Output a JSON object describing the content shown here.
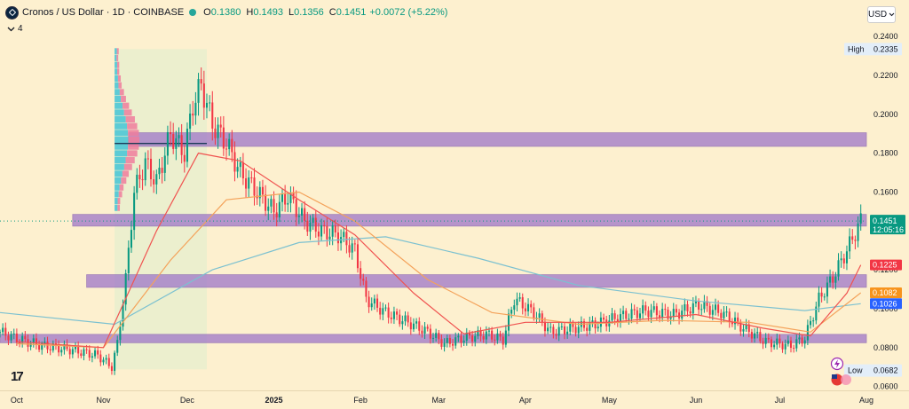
{
  "header": {
    "title": "Cronos / US Dollar · 1D · COINBASE",
    "open_label": "O",
    "open": "0.1380",
    "high_label": "H",
    "high": "0.1493",
    "low_label": "L",
    "low": "0.1356",
    "close_label": "C",
    "close": "0.1451",
    "change": "+0.0072 (+5.22%)",
    "indicator_count": "4",
    "currency": "USD"
  },
  "badges": {
    "high_label": "High",
    "high_value": "0.2335",
    "low_label": "Low",
    "low_value": "0.0682",
    "last_price": "0.1451",
    "countdown": "12:05:16",
    "ma_red": "0.1225",
    "ma_orange": "0.1082",
    "ma_blue": "0.1026"
  },
  "colors": {
    "background": "#fdf0cf",
    "up": "#089981",
    "down": "#f23645",
    "zone": "#9b72c9",
    "ma_red": "#f05350",
    "ma_orange": "#f4a25a",
    "ma_blue": "#7cc1d0",
    "volume_profile_up": "#44c4d6",
    "volume_profile_down": "#f07c9c"
  },
  "icons": [
    "coin-logo-icon",
    "chevron-down-icon",
    "lightning-icon",
    "us-flag-icon",
    "tradingview-logo-icon"
  ],
  "chart_data": {
    "type": "candlestick",
    "symbol": "CRO/USD",
    "interval": "1D",
    "exchange": "COINBASE",
    "y_axis": {
      "ticks": [
        "0.0600",
        "0.0800",
        "0.1000",
        "0.1200",
        "0.1400",
        "0.1600",
        "0.1800",
        "0.2000",
        "0.2200",
        "0.2400"
      ],
      "range": [
        0.058,
        0.246
      ]
    },
    "x_axis": {
      "labels": [
        "Oct",
        "Nov",
        "Dec",
        "2025",
        "Feb",
        "Mar",
        "Apr",
        "May",
        "Jun",
        "Jul",
        "Aug"
      ],
      "start": "2024-09-25",
      "end": "2025-08-01"
    },
    "zones": [
      {
        "bottom": 0.1835,
        "top": 0.1905,
        "from": "2024-11-10",
        "to": "2025-08-01"
      },
      {
        "bottom": 0.1425,
        "top": 0.1485,
        "from": "2024-10-21",
        "to": "2025-08-01"
      },
      {
        "bottom": 0.111,
        "top": 0.1175,
        "from": "2024-10-26",
        "to": "2025-08-01"
      },
      {
        "bottom": 0.0825,
        "top": 0.0868,
        "from": "2024-09-25",
        "to": "2025-08-01"
      }
    ],
    "profile_box": {
      "from": "2024-11-05",
      "to": "2024-12-08",
      "bottom": 0.0688,
      "top": 0.2335
    },
    "poc_price": 0.185,
    "price_path": [
      [
        "2024-09-25",
        0.088
      ],
      [
        "2024-10-01",
        0.0845
      ],
      [
        "2024-10-10",
        0.081
      ],
      [
        "2024-10-20",
        0.079
      ],
      [
        "2024-10-30",
        0.076
      ],
      [
        "2024-11-04",
        0.07
      ],
      [
        "2024-11-06",
        0.082
      ],
      [
        "2024-11-09",
        0.115
      ],
      [
        "2024-11-12",
        0.16
      ],
      [
        "2024-11-16",
        0.175
      ],
      [
        "2024-11-20",
        0.165
      ],
      [
        "2024-11-25",
        0.19
      ],
      [
        "2024-11-30",
        0.18
      ],
      [
        "2024-12-03",
        0.205
      ],
      [
        "2024-12-06",
        0.215
      ],
      [
        "2024-12-10",
        0.195
      ],
      [
        "2024-12-15",
        0.185
      ],
      [
        "2024-12-20",
        0.17
      ],
      [
        "2024-12-26",
        0.16
      ],
      [
        "2025-01-01",
        0.15
      ],
      [
        "2025-01-06",
        0.158
      ],
      [
        "2025-01-12",
        0.145
      ],
      [
        "2025-01-18",
        0.14
      ],
      [
        "2025-01-24",
        0.138
      ],
      [
        "2025-01-30",
        0.13
      ],
      [
        "2025-02-03",
        0.105
      ],
      [
        "2025-02-10",
        0.098
      ],
      [
        "2025-02-18",
        0.093
      ],
      [
        "2025-02-25",
        0.088
      ],
      [
        "2025-03-03",
        0.082
      ],
      [
        "2025-03-10",
        0.085
      ],
      [
        "2025-03-18",
        0.087
      ],
      [
        "2025-03-24",
        0.084
      ],
      [
        "2025-03-28",
        0.105
      ],
      [
        "2025-04-04",
        0.098
      ],
      [
        "2025-04-10",
        0.088
      ],
      [
        "2025-04-18",
        0.09
      ],
      [
        "2025-04-26",
        0.092
      ],
      [
        "2025-05-05",
        0.096
      ],
      [
        "2025-05-14",
        0.099
      ],
      [
        "2025-05-24",
        0.097
      ],
      [
        "2025-06-02",
        0.102
      ],
      [
        "2025-06-10",
        0.098
      ],
      [
        "2025-06-18",
        0.09
      ],
      [
        "2025-06-26",
        0.083
      ],
      [
        "2025-07-05",
        0.081
      ],
      [
        "2025-07-10",
        0.085
      ],
      [
        "2025-07-15",
        0.105
      ],
      [
        "2025-07-20",
        0.116
      ],
      [
        "2025-07-25",
        0.13
      ],
      [
        "2025-07-30",
        0.1451
      ]
    ],
    "ma_red": [
      [
        "2024-10-01",
        0.083
      ],
      [
        "2024-11-01",
        0.08
      ],
      [
        "2024-11-20",
        0.14
      ],
      [
        "2024-12-05",
        0.18
      ],
      [
        "2024-12-20",
        0.176
      ],
      [
        "2025-01-10",
        0.156
      ],
      [
        "2025-01-30",
        0.138
      ],
      [
        "2025-02-20",
        0.108
      ],
      [
        "2025-03-10",
        0.087
      ],
      [
        "2025-04-01",
        0.093
      ],
      [
        "2025-05-01",
        0.093
      ],
      [
        "2025-06-01",
        0.097
      ],
      [
        "2025-06-25",
        0.09
      ],
      [
        "2025-07-12",
        0.086
      ],
      [
        "2025-07-25",
        0.108
      ],
      [
        "2025-07-30",
        0.1225
      ]
    ],
    "ma_orange": [
      [
        "2024-10-01",
        0.082
      ],
      [
        "2024-11-01",
        0.08
      ],
      [
        "2024-11-25",
        0.125
      ],
      [
        "2024-12-15",
        0.156
      ],
      [
        "2025-01-10",
        0.16
      ],
      [
        "2025-01-30",
        0.145
      ],
      [
        "2025-02-25",
        0.115
      ],
      [
        "2025-03-20",
        0.098
      ],
      [
        "2025-04-20",
        0.092
      ],
      [
        "2025-05-20",
        0.094
      ],
      [
        "2025-06-20",
        0.093
      ],
      [
        "2025-07-12",
        0.088
      ],
      [
        "2025-07-30",
        0.1082
      ]
    ],
    "ma_blue": [
      [
        "2024-09-25",
        0.098
      ],
      [
        "2024-11-05",
        0.092
      ],
      [
        "2024-12-10",
        0.12
      ],
      [
        "2025-01-10",
        0.134
      ],
      [
        "2025-02-10",
        0.137
      ],
      [
        "2025-03-15",
        0.126
      ],
      [
        "2025-04-20",
        0.112
      ],
      [
        "2025-06-01",
        0.104
      ],
      [
        "2025-07-10",
        0.099
      ],
      [
        "2025-07-30",
        0.1026
      ]
    ]
  }
}
